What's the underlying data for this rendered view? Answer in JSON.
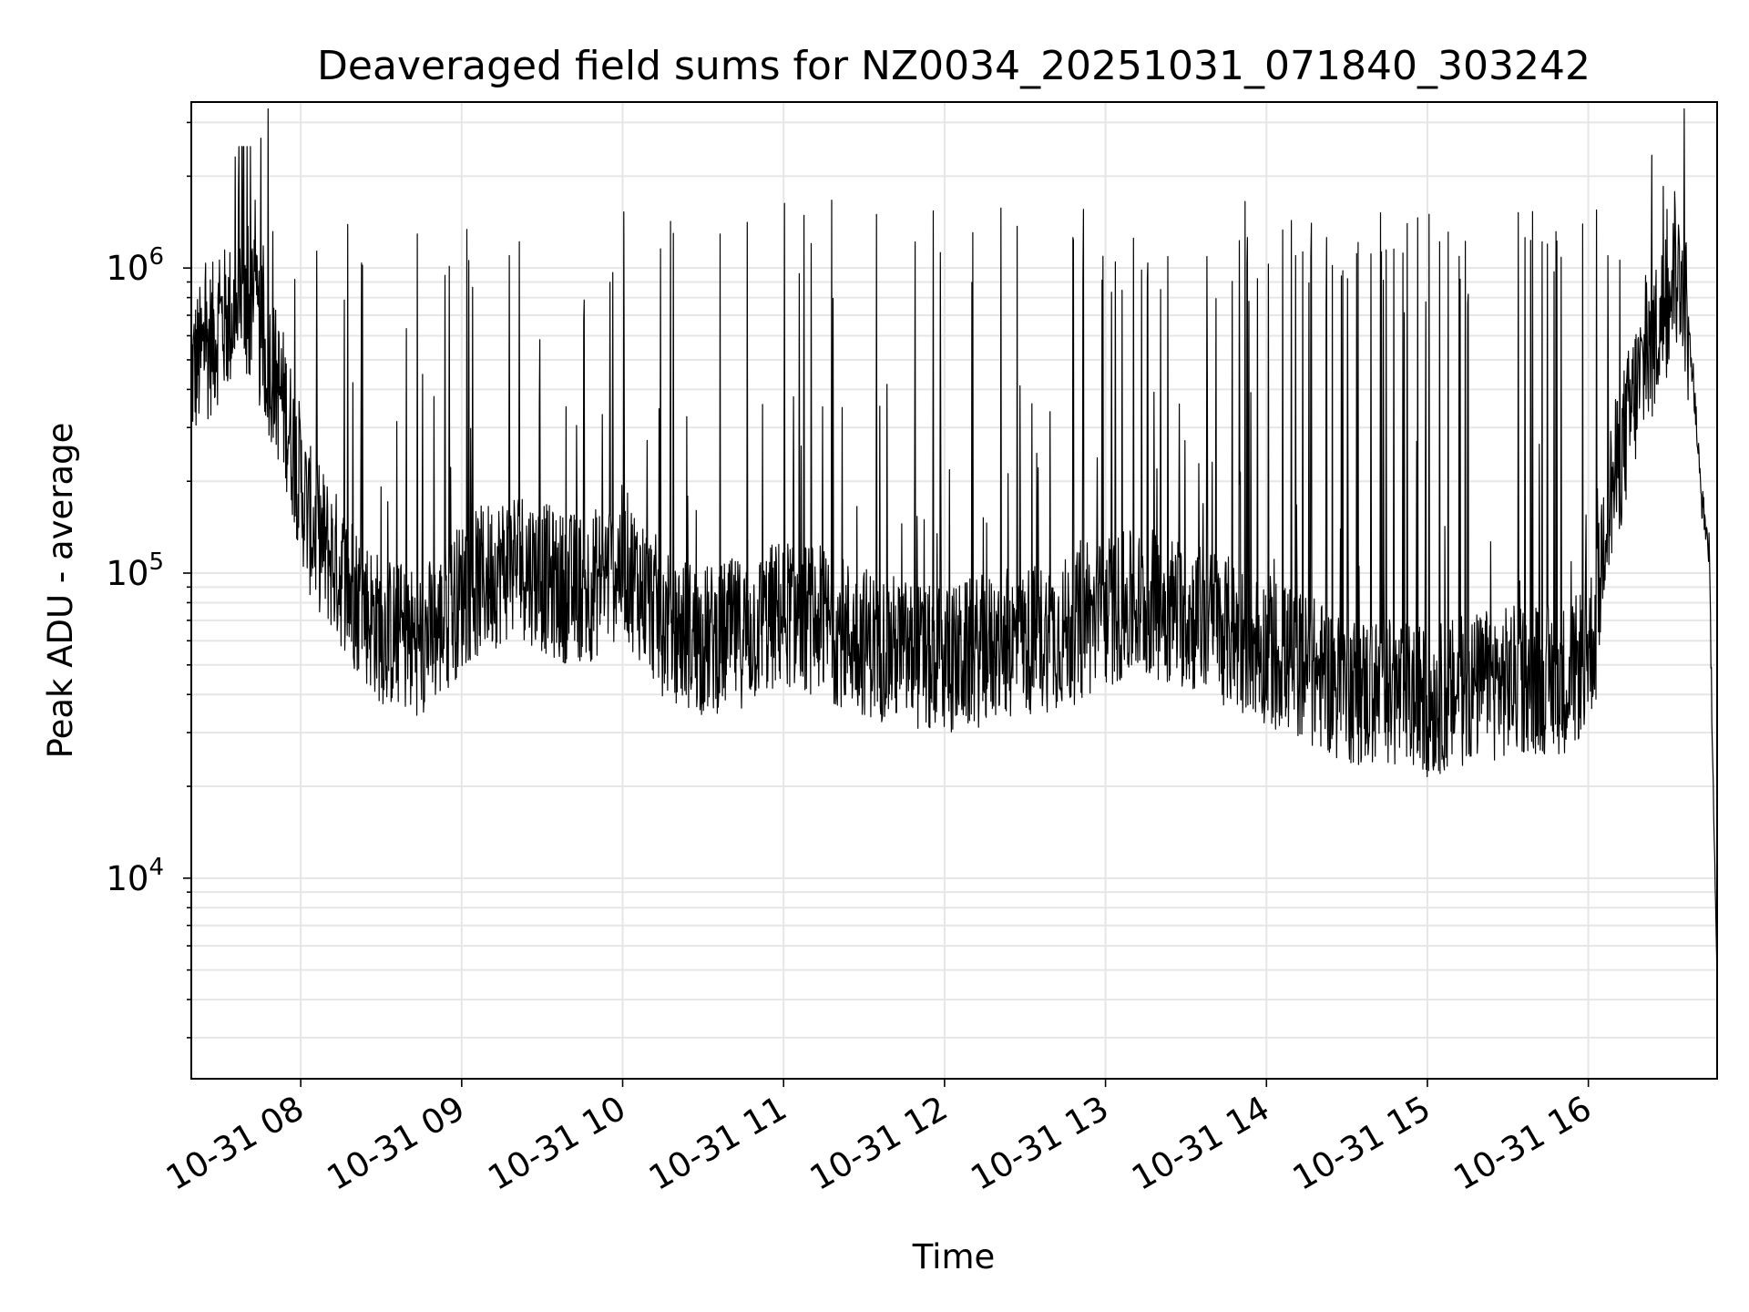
{
  "chart_data": {
    "type": "line",
    "title": "Deaveraged field sums for NZ0034_20251031_071840_303242",
    "xlabel": "Time",
    "ylabel": "Peak ADU - average",
    "yscale": "log",
    "ylim": [
      2200,
      3500000
    ],
    "xlim_hours": [
      7.32,
      16.8
    ],
    "grid": true,
    "x_ticks": [
      {
        "hour": 8,
        "label": "10-31 08"
      },
      {
        "hour": 9,
        "label": "10-31 09"
      },
      {
        "hour": 10,
        "label": "10-31 10"
      },
      {
        "hour": 11,
        "label": "10-31 11"
      },
      {
        "hour": 12,
        "label": "10-31 12"
      },
      {
        "hour": 13,
        "label": "10-31 13"
      },
      {
        "hour": 14,
        "label": "10-31 14"
      },
      {
        "hour": 15,
        "label": "10-31 15"
      },
      {
        "hour": 16,
        "label": "10-31 16"
      }
    ],
    "y_major_ticks": [
      {
        "value": 10000,
        "base": "10",
        "exp": "4"
      },
      {
        "value": 100000,
        "base": "10",
        "exp": "5"
      },
      {
        "value": 1000000,
        "base": "10",
        "exp": "6"
      }
    ],
    "series": [
      {
        "name": "Peak ADU - average",
        "color": "#000000",
        "baseline_hours": [
          7.32,
          7.5,
          7.65,
          7.75,
          7.9,
          8.05,
          8.3,
          8.5,
          8.7,
          8.85,
          9.0,
          9.2,
          9.35,
          9.6,
          9.8,
          10.0,
          10.25,
          10.5,
          10.8,
          11.0,
          11.2,
          11.5,
          11.75,
          11.95,
          12.2,
          12.5,
          12.8,
          13.0,
          13.3,
          13.6,
          13.9,
          14.2,
          14.5,
          14.8,
          15.0,
          15.3,
          15.6,
          15.9,
          16.05,
          16.1,
          16.3,
          16.5,
          16.58,
          16.65,
          16.7,
          16.75,
          16.8
        ],
        "baseline_values": [
          450000,
          650000,
          750000,
          600000,
          350000,
          150000,
          90000,
          65000,
          60000,
          65000,
          85000,
          100000,
          110000,
          90000,
          90000,
          110000,
          70000,
          60000,
          65000,
          75000,
          70000,
          60000,
          55000,
          50000,
          55000,
          60000,
          65000,
          75000,
          80000,
          70000,
          60000,
          50000,
          42000,
          40000,
          38000,
          42000,
          45000,
          45000,
          65000,
          150000,
          400000,
          800000,
          1000000,
          450000,
          180000,
          120000,
          4000
        ],
        "spike_heights": [
          1600000,
          1400000,
          1600000,
          1200000,
          1500000,
          1000000,
          1600000,
          1200000,
          1300000,
          1500000,
          1100000,
          1400000,
          1000000,
          900000,
          1100000,
          1200000,
          1400000,
          900000,
          1500000,
          1200000,
          1100000,
          1300000,
          1600000,
          1500000,
          1400000,
          1200000,
          1500000,
          1600000,
          1400000
        ]
      }
    ]
  }
}
